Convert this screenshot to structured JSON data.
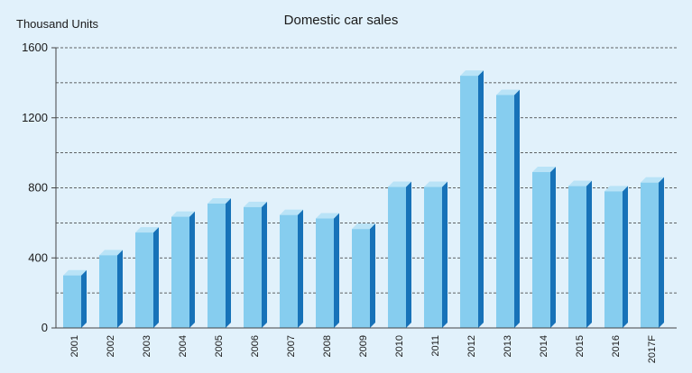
{
  "chart_data": {
    "type": "bar",
    "title": "Domestic car sales",
    "ylabel": "Thousand Units",
    "xlabel": "",
    "categories": [
      "2001",
      "2002",
      "2003",
      "2004",
      "2005",
      "2006",
      "2007",
      "2008",
      "2009",
      "2010",
      "2011",
      "2012",
      "2013",
      "2014",
      "2015",
      "2016",
      "2017F"
    ],
    "values": [
      300,
      415,
      545,
      635,
      710,
      690,
      645,
      625,
      565,
      805,
      805,
      1440,
      1330,
      890,
      810,
      780,
      830
    ],
    "ylim": [
      0,
      1600
    ],
    "yticks": [
      "0",
      "400",
      "800",
      "1200",
      "1600"
    ],
    "grid": true,
    "colors": {
      "background": "#e1f1fb",
      "bar_front": "#86cdef",
      "bar_top": "#b9e3f7",
      "bar_side": "#1772b8",
      "grid": "#333333"
    }
  }
}
